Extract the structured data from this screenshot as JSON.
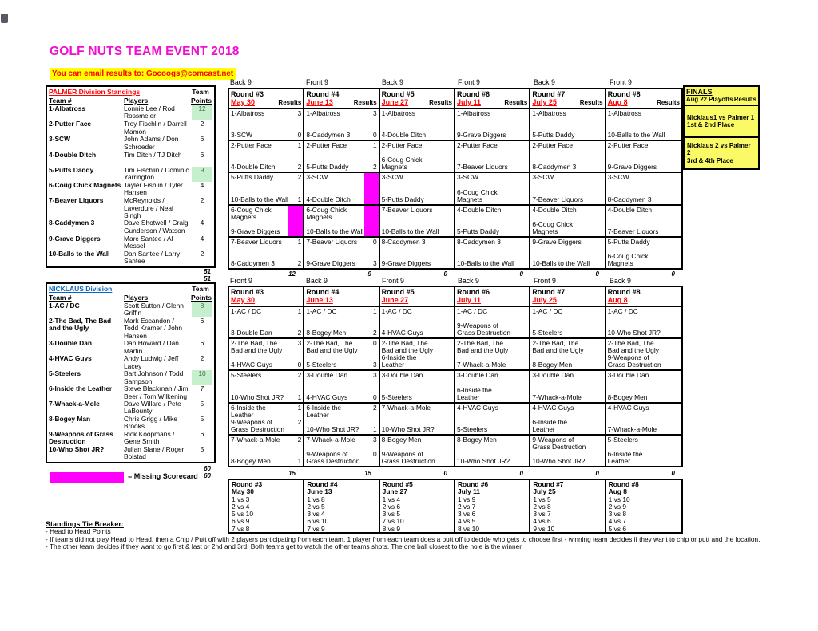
{
  "page": {
    "title": "GOLF NUTS TEAM EVENT 2018",
    "email_note": "You can email results to: Gocoogs@comcast.net"
  },
  "labels": {
    "results": "Results",
    "team_top": "Team",
    "team_col": "Team #",
    "players_col": "Players",
    "points_col": "Points"
  },
  "colors": {
    "title_magenta": "#f20dd2",
    "highlight_yellow": "#ffff00",
    "red": "#ff0000",
    "division_blue": "#0563c1",
    "green_fill": "#c6efce",
    "missing_magenta": "#ff00ff",
    "finals_yellow": "#fafa66"
  },
  "palmer_standings": {
    "header": "PALMER Division Standings",
    "header_color": "#ff0000",
    "rows": [
      {
        "team": "1-Albatross",
        "players": "Lonnie Lee / Rod Rossmeier",
        "points": "12",
        "highlight": true
      },
      {
        "team": "2-Putter Face",
        "players": "Troy Fischlin / Darrell Mamon",
        "points": "2",
        "highlight": false
      },
      {
        "team": "3-SCW",
        "players": "John Adams / Don Schroeder",
        "points": "6",
        "highlight": false
      },
      {
        "team": "4-Double Ditch",
        "players": "Tim Ditch / TJ Ditch",
        "points": "6",
        "highlight": false
      },
      {
        "team": "5-Putts Daddy",
        "players": "Tim Fischlin / Dominic Yarrington",
        "points": "9",
        "highlight": true
      },
      {
        "team": "6-Coug Chick Magnets",
        "players": "Tayler Fishlin / Tyler Hansen",
        "points": "4",
        "highlight": false
      },
      {
        "team": "7-Beaver Liquors",
        "players": "McReynolds / Laverdure / Neal Singh",
        "points": "2",
        "highlight": false
      },
      {
        "team": "8-Caddymen 3",
        "players": "Dave Shotwell / Craig Gunderson / Watson",
        "points": "4",
        "highlight": false
      },
      {
        "team": "9-Grave Diggers",
        "players": "Marc Santee / Al Messel",
        "points": "4",
        "highlight": false
      },
      {
        "team": "10-Balls to the Wall",
        "players": "Dan Santee / Larry Santee",
        "points": "2",
        "highlight": false
      }
    ],
    "totals": [
      "51",
      "51"
    ]
  },
  "nicklaus_standings": {
    "header": "NICKLAUS Division",
    "header_color": "#0563c1",
    "rows": [
      {
        "team": "1-AC / DC",
        "players": "Scott Sutton / Glenn Griffin",
        "points": "8",
        "highlight": true
      },
      {
        "team": "2-The Bad, The Bad and the Ugly",
        "players": "Mark Escandon / Todd Kramer / John Hansen",
        "points": "6",
        "highlight": false
      },
      {
        "team": "3-Double Dan",
        "players": "Dan Howard / Dan Martin",
        "points": "6",
        "highlight": false
      },
      {
        "team": "4-HVAC Guys",
        "players": "Andy Ludwig / Jeff Lacey",
        "points": "2",
        "highlight": false
      },
      {
        "team": "5-Steelers",
        "players": "Bart Johnson / Todd Sampson",
        "points": "10",
        "highlight": true
      },
      {
        "team": "6-Inside the Leather",
        "players": "Steve Blackman / Jim Beer / Tom Wilkening",
        "points": "7",
        "highlight": false
      },
      {
        "team": "7-Whack-a-Mole",
        "players": "Dave Willard / Pete LaBounty",
        "points": "5",
        "highlight": false
      },
      {
        "team": "8-Bogey Man",
        "players": "Chris Grigg / Mike Brooks",
        "points": "5",
        "highlight": false
      },
      {
        "team": "9-Weapons of Grass Destruction",
        "players": "Rick Koopmans / Gene Smith",
        "points": "6",
        "highlight": false
      },
      {
        "team": "10-Who Shot JR?",
        "players": "Julian Slane / Roger Bolstad",
        "points": "5",
        "highlight": false
      }
    ],
    "totals": [
      "60",
      "60"
    ]
  },
  "palmer_rounds": {
    "show_results_label": true,
    "rounds": [
      {
        "name": "Round #3",
        "date": "May 30",
        "nine": "Back 9",
        "total": "12",
        "matches": [
          {
            "home": "1-Albatross",
            "hs": "3",
            "away": "3-SCW",
            "as": "0",
            "missing": false
          },
          {
            "home": "2-Putter Face",
            "hs": "1",
            "away": "4-Double Ditch",
            "as": "2",
            "missing": false
          },
          {
            "home": "5-Putts Daddy",
            "hs": "2",
            "away": "10-Balls to the Wall",
            "as": "1",
            "missing": false
          },
          {
            "home": "6-Coug Chick Magnets",
            "hs": "",
            "away": "9-Grave Diggers",
            "as": "",
            "missing": true
          },
          {
            "home": "7-Beaver Liquors",
            "hs": "1",
            "away": "8-Caddymen 3",
            "as": "2",
            "missing": false
          }
        ]
      },
      {
        "name": "Round #4",
        "date": "June 13",
        "nine": "Front 9",
        "total": "9",
        "matches": [
          {
            "home": "1-Albatross",
            "hs": "3",
            "away": "8-Caddymen 3",
            "as": "0",
            "missing": false
          },
          {
            "home": "2-Putter Face",
            "hs": "1",
            "away": "5-Putts Daddy",
            "as": "2",
            "missing": false
          },
          {
            "home": "3-SCW",
            "hs": "",
            "away": "4-Double Ditch",
            "as": "",
            "missing": true
          },
          {
            "home": "6-Coug Chick Magnets",
            "hs": "",
            "away": "10-Balls to the Wall",
            "as": "",
            "missing": true
          },
          {
            "home": "7-Beaver Liquors",
            "hs": "0",
            "away": "9-Grave Diggers",
            "as": "3",
            "missing": false
          }
        ]
      },
      {
        "name": "Round #5",
        "date": "June 27",
        "nine": "Back 9",
        "total": "0",
        "matches": [
          {
            "home": "1-Albatross",
            "hs": "",
            "away": "4-Double Ditch",
            "as": "",
            "missing": false
          },
          {
            "home": "2-Putter Face",
            "hs": "",
            "away": "6-Coug Chick Magnets",
            "as": "",
            "missing": false
          },
          {
            "home": "3-SCW",
            "hs": "",
            "away": "5-Putts Daddy",
            "as": "",
            "missing": false
          },
          {
            "home": "7-Beaver Liquors",
            "hs": "",
            "away": "10-Balls to the Wall",
            "as": "",
            "missing": false
          },
          {
            "home": "8-Caddymen 3",
            "hs": "",
            "away": "9-Grave Diggers",
            "as": "",
            "missing": false
          }
        ]
      },
      {
        "name": "Round #6",
        "date": "July 11",
        "nine": "Front 9",
        "total": "0",
        "matches": [
          {
            "home": "1-Albatross",
            "hs": "",
            "away": "9-Grave Diggers",
            "as": "",
            "missing": false
          },
          {
            "home": "2-Putter Face",
            "hs": "",
            "away": "7-Beaver Liquors",
            "as": "",
            "missing": false
          },
          {
            "home": "3-SCW",
            "hs": "",
            "away": "6-Coug Chick Magnets",
            "as": "",
            "missing": false
          },
          {
            "home": "4-Double Ditch",
            "hs": "",
            "away": "5-Putts Daddy",
            "as": "",
            "missing": false
          },
          {
            "home": "8-Caddymen 3",
            "hs": "",
            "away": "10-Balls to the Wall",
            "as": "",
            "missing": false
          }
        ]
      },
      {
        "name": "Round #7",
        "date": "July 25",
        "nine": "Back 9",
        "total": "0",
        "matches": [
          {
            "home": "1-Albatross",
            "hs": "",
            "away": "5-Putts Daddy",
            "as": "",
            "missing": false
          },
          {
            "home": "2-Putter Face",
            "hs": "",
            "away": "8-Caddymen 3",
            "as": "",
            "missing": false
          },
          {
            "home": "3-SCW",
            "hs": "",
            "away": "7-Beaver Liquors",
            "as": "",
            "missing": false
          },
          {
            "home": "4-Double Ditch",
            "hs": "",
            "away": "6-Coug Chick Magnets",
            "as": "",
            "missing": false
          },
          {
            "home": "9-Grave Diggers",
            "hs": "",
            "away": "10-Balls to the Wall",
            "as": "",
            "missing": false
          }
        ]
      },
      {
        "name": "Round #8",
        "date": "Aug 8",
        "nine": "Front 9",
        "total": "0",
        "matches": [
          {
            "home": "1-Albatross",
            "hs": "",
            "away": "10-Balls to the Wall",
            "as": "",
            "missing": false
          },
          {
            "home": "2-Putter Face",
            "hs": "",
            "away": "9-Grave Diggers",
            "as": "",
            "missing": false
          },
          {
            "home": "3-SCW",
            "hs": "",
            "away": "8-Caddymen 3",
            "as": "",
            "missing": false
          },
          {
            "home": "4-Double Ditch",
            "hs": "",
            "away": "7-Beaver Liquors",
            "as": "",
            "missing": false
          },
          {
            "home": "5-Putts Daddy",
            "hs": "",
            "away": "6-Coug Chick Magnets",
            "as": "",
            "missing": false
          }
        ]
      }
    ]
  },
  "nicklaus_rounds": {
    "show_results_label": false,
    "rounds": [
      {
        "name": "Round #3",
        "date": "May 30",
        "nine": "Front 9",
        "total": "15",
        "matches": [
          {
            "home": "1-AC / DC",
            "hs": "1",
            "away": "3-Double Dan",
            "as": "2",
            "missing": false
          },
          {
            "home": "2-The Bad, The Bad and the Ugly",
            "hs": "3",
            "away": "4-HVAC Guys",
            "as": "0",
            "missing": false
          },
          {
            "home": "5-Steelers",
            "hs": "2",
            "away": "10-Who Shot JR?",
            "as": "1",
            "missing": false
          },
          {
            "home": "6-Inside the Leather",
            "hs": "1",
            "away": "9-Weapons of Grass Destruction",
            "as": "2",
            "missing": false
          },
          {
            "home": "7-Whack-a-Mole",
            "hs": "2",
            "away": "8-Bogey Men",
            "as": "1",
            "missing": false
          }
        ]
      },
      {
        "name": "Round #4",
        "date": "June 13",
        "nine": "Back 9",
        "total": "15",
        "matches": [
          {
            "home": "1-AC / DC",
            "hs": "1",
            "away": "8-Bogey Men",
            "as": "2",
            "missing": false
          },
          {
            "home": "2-The Bad, The Bad and the Ugly",
            "hs": "0",
            "away": "5-Steelers",
            "as": "3",
            "missing": false
          },
          {
            "home": "3-Double Dan",
            "hs": "3",
            "away": "4-HVAC Guys",
            "as": "0",
            "missing": false
          },
          {
            "home": "6-Inside the Leather",
            "hs": "2",
            "away": "10-Who Shot JR?",
            "as": "1",
            "missing": false
          },
          {
            "home": "7-Whack-a-Mole",
            "hs": "3",
            "away": "9-Weapons of Grass Destruction",
            "as": "0",
            "missing": false
          }
        ]
      },
      {
        "name": "Round #5",
        "date": "June 27",
        "nine": "Front 9",
        "total": "0",
        "matches": [
          {
            "home": "1-AC / DC",
            "hs": "",
            "away": "4-HVAC Guys",
            "as": "",
            "missing": false
          },
          {
            "home": "2-The Bad, The Bad and the Ugly",
            "hs": "",
            "away": "6-Inside the Leather",
            "as": "",
            "missing": false
          },
          {
            "home": "3-Double Dan",
            "hs": "",
            "away": "5-Steelers",
            "as": "",
            "missing": false
          },
          {
            "home": "7-Whack-a-Mole",
            "hs": "",
            "away": "10-Who Shot JR?",
            "as": "",
            "missing": false
          },
          {
            "home": "8-Bogey Men",
            "hs": "",
            "away": "9-Weapons of Grass Destruction",
            "as": "",
            "missing": false
          }
        ]
      },
      {
        "name": "Round #6",
        "date": "July 11",
        "nine": "Back 9",
        "total": "0",
        "matches": [
          {
            "home": "1-AC / DC",
            "hs": "",
            "away": "9-Weapons of Grass Destruction",
            "as": "",
            "missing": false
          },
          {
            "home": "2-The Bad, The Bad and the Ugly",
            "hs": "",
            "away": "7-Whack-a-Mole",
            "as": "",
            "missing": false
          },
          {
            "home": "3-Double Dan",
            "hs": "",
            "away": "6-Inside the Leather",
            "as": "",
            "missing": false
          },
          {
            "home": "4-HVAC Guys",
            "hs": "",
            "away": "5-Steelers",
            "as": "",
            "missing": false
          },
          {
            "home": "8-Bogey Men",
            "hs": "",
            "away": "10-Who Shot JR?",
            "as": "",
            "missing": false
          }
        ]
      },
      {
        "name": "Round #7",
        "date": "July 25",
        "nine": "Front 9",
        "total": "0",
        "matches": [
          {
            "home": "1-AC / DC",
            "hs": "",
            "away": "5-Steelers",
            "as": "",
            "missing": false
          },
          {
            "home": "2-The Bad, The Bad and the Ugly",
            "hs": "",
            "away": "8-Bogey Men",
            "as": "",
            "missing": false
          },
          {
            "home": "3-Double Dan",
            "hs": "",
            "away": "7-Whack-a-Mole",
            "as": "",
            "missing": false
          },
          {
            "home": "4-HVAC Guys",
            "hs": "",
            "away": "6-Inside the Leather",
            "as": "",
            "missing": false
          },
          {
            "home": "9-Weapons of Grass Destruction",
            "hs": "",
            "away": "10-Who Shot JR?",
            "as": "",
            "missing": false
          }
        ]
      },
      {
        "name": "Round #8",
        "date": "Aug 8",
        "nine": "Back 9",
        "total": "0",
        "matches": [
          {
            "home": "1-AC / DC",
            "hs": "",
            "away": "10-Who Shot JR?",
            "as": "",
            "missing": false
          },
          {
            "home": "2-The Bad, The Bad and the Ugly",
            "hs": "",
            "away": "9-Weapons of Grass Destruction",
            "as": "",
            "missing": false
          },
          {
            "home": "3-Double Dan",
            "hs": "",
            "away": "8-Bogey Men",
            "as": "",
            "missing": false
          },
          {
            "home": "4-HVAC Guys",
            "hs": "",
            "away": "7-Whack-a-Mole",
            "as": "",
            "missing": false
          },
          {
            "home": "5-Steelers",
            "hs": "",
            "away": "6-Inside the Leather",
            "as": "",
            "missing": false
          }
        ]
      }
    ]
  },
  "finals": {
    "title": "FINALS",
    "subtitle": "Aug 22 Playoffs",
    "results_label": "Results",
    "matches": [
      {
        "line1": "Nicklaus1 vs Palmer 1",
        "line2": "1st & 2nd Place"
      },
      {
        "line1": "Nicklaus 2 vs Palmer 2",
        "line2": "3rd & 4th Place"
      }
    ]
  },
  "schedule": {
    "rounds": [
      {
        "name": "Round #3",
        "date": "May 30",
        "pairings": [
          "1 vs 3",
          "2 vs 4",
          "5 vs 10",
          "6 vs 9",
          "7 vs 8"
        ]
      },
      {
        "name": "Round #4",
        "date": "June 13",
        "pairings": [
          "1 vs 8",
          "2 vs 5",
          "3 vs 4",
          "6 vs 10",
          "7 vs 9"
        ]
      },
      {
        "name": "Round #5",
        "date": "June 27",
        "pairings": [
          "1 vs 4",
          "2 vs 6",
          "3 vs 5",
          "7 vs 10",
          "8 vs 9"
        ]
      },
      {
        "name": "Round #6",
        "date": "July 11",
        "pairings": [
          "1 vs 9",
          "2 vs 7",
          "3 vs 6",
          "4 vs 5",
          "8 vs 10"
        ]
      },
      {
        "name": "Round #7",
        "date": "July 25",
        "pairings": [
          "1 vs 5",
          "2 vs 8",
          "3 vs 7",
          "4 vs 6",
          "9 vs 10"
        ]
      },
      {
        "name": "Round #8",
        "date": "Aug 8",
        "pairings": [
          "1 vs 10",
          "2 vs 9",
          "3 vs 8",
          "4 vs 7",
          "5 vs 6"
        ]
      }
    ]
  },
  "legend": {
    "label": "= Missing Scorecard"
  },
  "tiebreaker": {
    "title": "Standings Tie Breaker:",
    "lines": [
      "- Head to Head Points",
      "- If teams did not play Head to Head, then a Chip / Putt off with 2 players participating from each team.  1 player from each team does a putt off to decide who gets to choose first - winning team decides if they want to chip or putt and the location.",
      "- The other team decides if they want to go first & last or 2nd and 3rd.  Both teams get to watch the other teams shots.  The one ball closest to the hole is the winner"
    ]
  }
}
